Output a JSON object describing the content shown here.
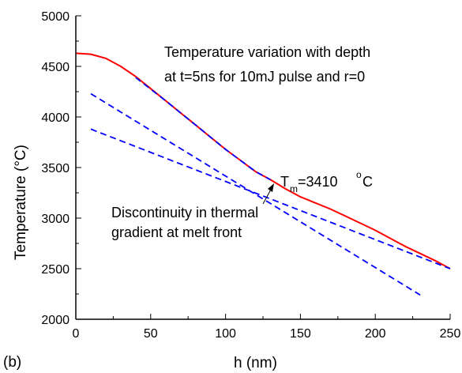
{
  "chart_data": {
    "type": "line",
    "panel_label": "(b)",
    "xlabel": "h   (nm)",
    "ylabel": "Temperature   (°C)",
    "xlim": [
      0,
      250
    ],
    "ylim": [
      2000,
      5000
    ],
    "x_ticks": [
      0,
      50,
      100,
      150,
      200,
      250
    ],
    "y_ticks": [
      2000,
      2500,
      3000,
      3500,
      4000,
      4500,
      5000
    ],
    "x_tick_labels": [
      "0",
      "50",
      "100",
      "150",
      "200",
      "250"
    ],
    "y_tick_labels": [
      "2000",
      "2500",
      "3000",
      "3500",
      "4000",
      "4500",
      "5000"
    ],
    "grid": false,
    "annotations": {
      "title_line1": "Temperature variation with depth",
      "title_line2": "at t=5ns for 10mJ pulse and r=0",
      "tm_label": "T",
      "tm_sub": "m",
      "tm_value": "=3410",
      "tm_degree": "o",
      "tm_unit": "C",
      "disc_line1": "Discontinuity in thermal",
      "disc_line2": "gradient at melt front"
    },
    "series": [
      {
        "style": "solid",
        "color": "#ff0000",
        "x": [
          0,
          10,
          20,
          30,
          40,
          50,
          60,
          70,
          80,
          90,
          100,
          110,
          120,
          130,
          140,
          150,
          160,
          170,
          180,
          190,
          200,
          210,
          220,
          230,
          240,
          250
        ],
        "y": [
          4630,
          4620,
          4580,
          4500,
          4400,
          4280,
          4160,
          4040,
          3920,
          3800,
          3680,
          3570,
          3460,
          3380,
          3290,
          3210,
          3150,
          3090,
          3020,
          2950,
          2880,
          2800,
          2720,
          2650,
          2580,
          2500
        ]
      },
      {
        "style": "dashed",
        "color": "#0000ff",
        "x": [
          10,
          230
        ],
        "y": [
          4230,
          2240
        ]
      },
      {
        "style": "dashed",
        "color": "#0000ff",
        "x": [
          10,
          250
        ],
        "y": [
          3880,
          2500
        ]
      },
      {
        "style": "dashed",
        "color": "#0000ff",
        "x": [
          40,
          60,
          80,
          100,
          120,
          130
        ],
        "y": [
          4390,
          4160,
          3920,
          3680,
          3460,
          3380
        ]
      }
    ]
  }
}
